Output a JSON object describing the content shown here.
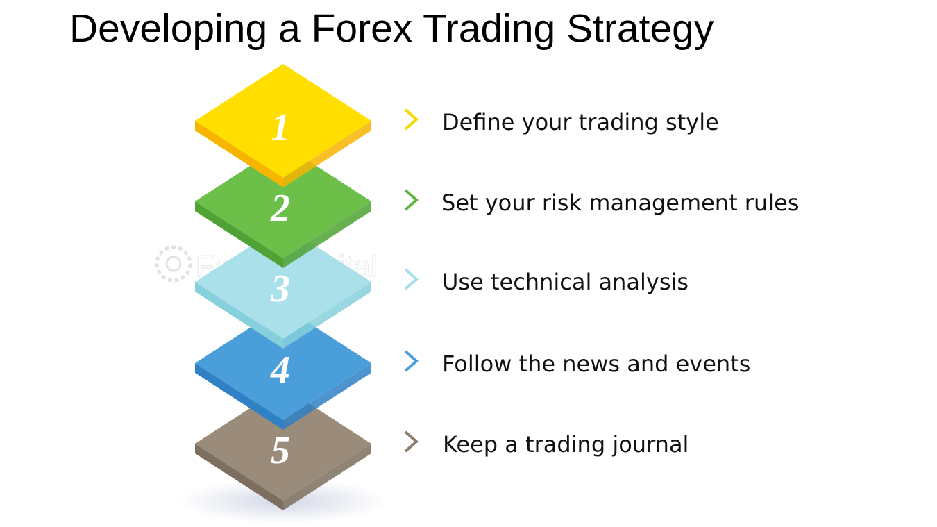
{
  "title": "Developing a Forex Trading Strategy",
  "watermark": "FasterCapital",
  "steps": [
    {
      "number": "1",
      "label": "Define your trading style",
      "top": "#ffde00",
      "side": "#f7b500",
      "chevron": "#f5d800"
    },
    {
      "number": "2",
      "label": "Set your risk management rules",
      "top": "#6cc04a",
      "side": "#4fa234",
      "chevron": "#5cb544"
    },
    {
      "number": "3",
      "label": "Use technical analysis",
      "top": "#a9e0ea",
      "side": "#86cfdc",
      "chevron": "#a5dde8"
    },
    {
      "number": "4",
      "label": "Follow the news and events",
      "top": "#4a9ed9",
      "side": "#2f80c4",
      "chevron": "#4a9ed9"
    },
    {
      "number": "5",
      "label": "Keep a trading journal",
      "top": "#9b8b7a",
      "side": "#7d6e5f",
      "chevron": "#8d7e6f"
    }
  ]
}
